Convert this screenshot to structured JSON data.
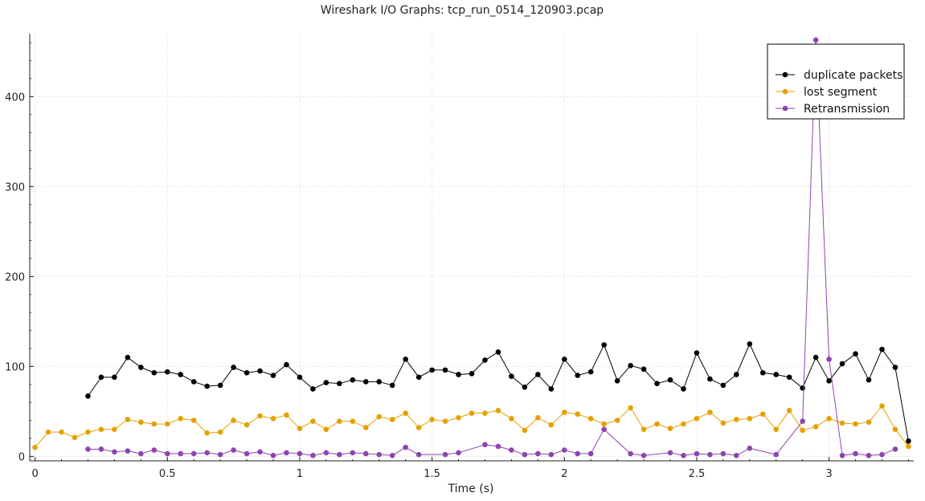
{
  "chart_data": {
    "type": "line",
    "title": "Wireshark I/O Graphs: tcp_run_0514_120903.pcap",
    "xlabel": "Time (s)",
    "ylabel": "",
    "xlim": [
      -0.02,
      3.32
    ],
    "ylim": [
      -5,
      470
    ],
    "xticks": [
      0,
      0.5,
      1,
      1.5,
      2,
      2.5,
      3
    ],
    "xtick_labels": [
      "0",
      "0.5",
      "1",
      "1.5",
      "2",
      "2.5",
      "3"
    ],
    "yticks": [
      0,
      100,
      200,
      300,
      400
    ],
    "ytick_labels": [
      "0",
      "100",
      "200",
      "300",
      "400"
    ],
    "grid": true,
    "legend_position": "top-right",
    "series": [
      {
        "name": "duplicate packets",
        "color": "#000000",
        "x": [
          0.2,
          0.25,
          0.3,
          0.35,
          0.4,
          0.45,
          0.5,
          0.55,
          0.6,
          0.65,
          0.7,
          0.75,
          0.8,
          0.85,
          0.9,
          0.95,
          1.0,
          1.05,
          1.1,
          1.15,
          1.2,
          1.25,
          1.3,
          1.35,
          1.4,
          1.45,
          1.5,
          1.55,
          1.6,
          1.65,
          1.7,
          1.75,
          1.8,
          1.85,
          1.9,
          1.95,
          2.0,
          2.05,
          2.1,
          2.15,
          2.2,
          2.25,
          2.3,
          2.35,
          2.4,
          2.45,
          2.5,
          2.55,
          2.6,
          2.65,
          2.7,
          2.75,
          2.8,
          2.85,
          2.9,
          2.95,
          3.0,
          3.05,
          3.1,
          3.15,
          3.2,
          3.25,
          3.3
        ],
        "y": [
          67,
          88,
          88,
          110,
          99,
          93,
          94,
          91,
          83,
          78,
          79,
          99,
          93,
          95,
          90,
          102,
          88,
          75,
          82,
          81,
          85,
          83,
          83,
          79,
          108,
          88,
          96,
          96,
          91,
          92,
          107,
          116,
          89,
          77,
          91,
          75,
          108,
          90,
          94,
          124,
          84,
          101,
          97,
          81,
          85,
          75,
          115,
          86,
          79,
          91,
          125,
          93,
          91,
          88,
          76,
          110,
          84,
          103,
          114,
          85,
          119,
          99,
          17
        ]
      },
      {
        "name": "lost segment",
        "color": "#e6a100",
        "x": [
          0.0,
          0.05,
          0.1,
          0.15,
          0.2,
          0.25,
          0.3,
          0.35,
          0.4,
          0.45,
          0.5,
          0.55,
          0.6,
          0.65,
          0.7,
          0.75,
          0.8,
          0.85,
          0.9,
          0.95,
          1.0,
          1.05,
          1.1,
          1.15,
          1.2,
          1.25,
          1.3,
          1.35,
          1.4,
          1.45,
          1.5,
          1.55,
          1.6,
          1.65,
          1.7,
          1.75,
          1.8,
          1.85,
          1.9,
          1.95,
          2.0,
          2.05,
          2.1,
          2.15,
          2.2,
          2.25,
          2.3,
          2.35,
          2.4,
          2.45,
          2.5,
          2.55,
          2.6,
          2.65,
          2.7,
          2.75,
          2.8,
          2.85,
          2.9,
          2.95,
          3.0,
          3.05,
          3.1,
          3.15,
          3.2,
          3.25,
          3.3
        ],
        "y": [
          10,
          27,
          27,
          21,
          27,
          30,
          30,
          41,
          38,
          36,
          36,
          42,
          40,
          26,
          27,
          40,
          35,
          45,
          42,
          46,
          31,
          39,
          30,
          39,
          39,
          32,
          44,
          41,
          48,
          32,
          41,
          39,
          43,
          48,
          48,
          51,
          42,
          29,
          43,
          35,
          49,
          47,
          42,
          36,
          40,
          54,
          30,
          36,
          31,
          36,
          42,
          49,
          37,
          41,
          42,
          47,
          30,
          51,
          29,
          33,
          42,
          37,
          36,
          38,
          56,
          30,
          11
        ]
      },
      {
        "name": "Retransmission",
        "color": "#8e44ad",
        "x": [
          0.2,
          0.25,
          0.3,
          0.35,
          0.4,
          0.45,
          0.5,
          0.55,
          0.6,
          0.65,
          0.7,
          0.75,
          0.8,
          0.85,
          0.9,
          0.95,
          1.0,
          1.05,
          1.1,
          1.15,
          1.2,
          1.25,
          1.3,
          1.35,
          1.4,
          1.45,
          1.55,
          1.6,
          1.7,
          1.75,
          1.8,
          1.85,
          1.9,
          1.95,
          2.0,
          2.05,
          2.1,
          2.15,
          2.25,
          2.3,
          2.4,
          2.45,
          2.5,
          2.55,
          2.6,
          2.65,
          2.7,
          2.8,
          2.9,
          2.95,
          3.0,
          3.05,
          3.1,
          3.15,
          3.2,
          3.25
        ],
        "y": [
          8,
          8,
          5,
          6,
          3,
          7,
          3,
          3,
          3,
          4,
          2,
          7,
          3,
          5,
          1,
          4,
          3,
          1,
          4,
          2,
          4,
          3,
          2,
          1,
          10,
          2,
          2,
          4,
          13,
          11,
          7,
          2,
          3,
          2,
          7,
          3,
          3,
          30,
          3,
          1,
          4,
          1,
          3,
          2,
          3,
          1,
          9,
          2,
          39,
          463,
          108,
          1,
          3,
          1,
          2,
          8
        ]
      }
    ]
  }
}
